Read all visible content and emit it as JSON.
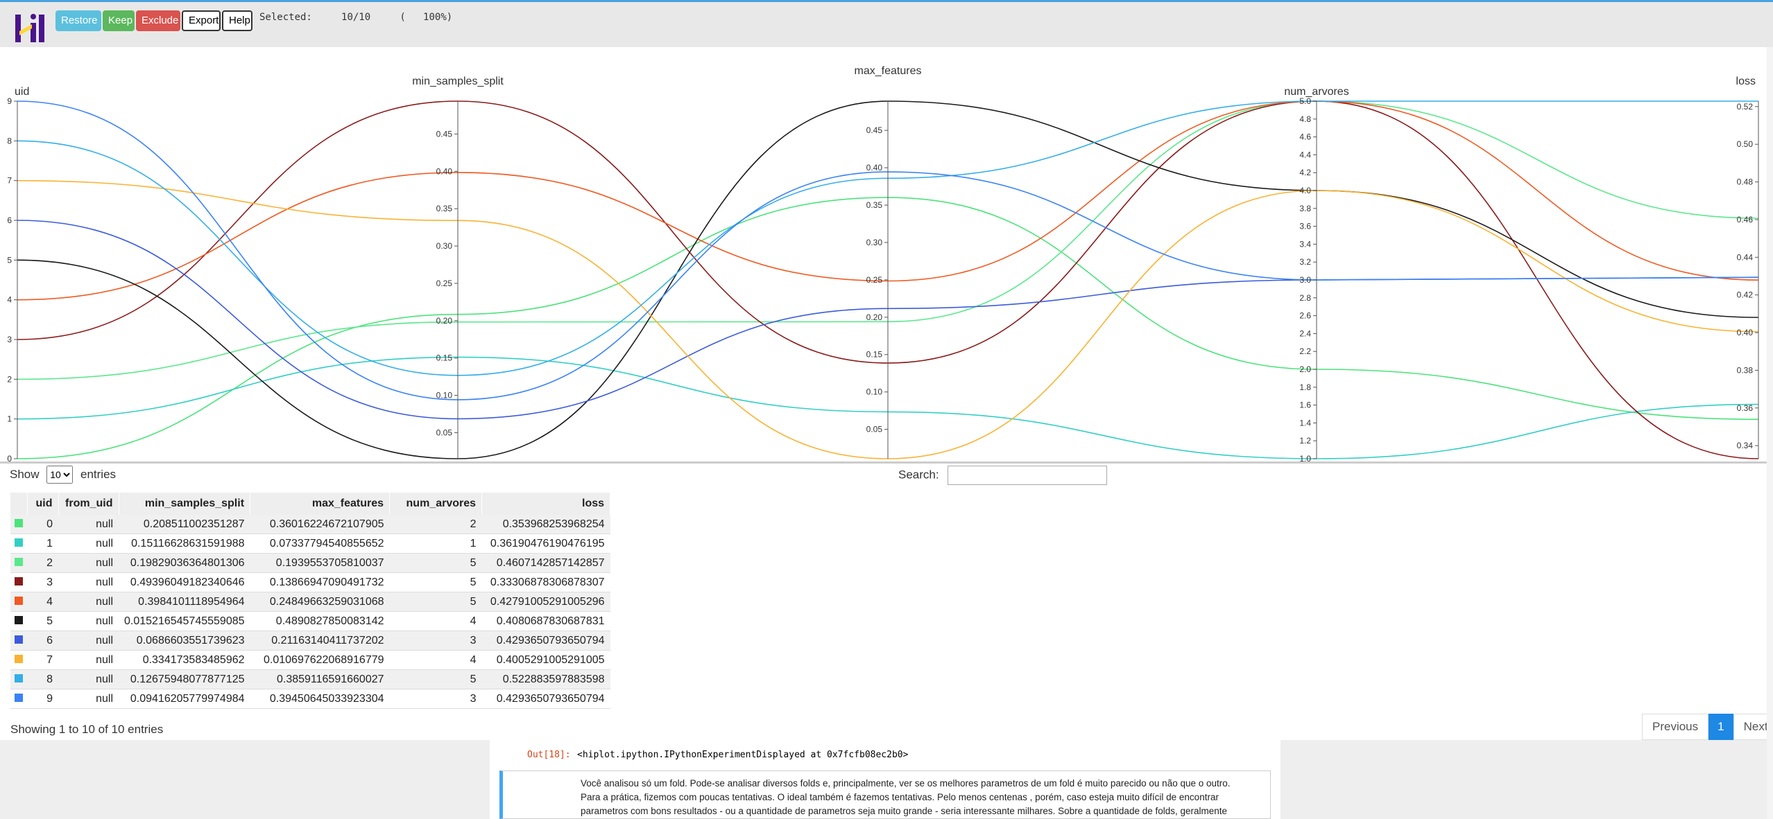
{
  "toolbar": {
    "restore": "Restore",
    "keep": "Keep",
    "exclude": "Exclude",
    "export": "Export",
    "help": "Help",
    "selected_label": "Selected:",
    "selected_count": "10/10",
    "selected_pct": "(   100%)"
  },
  "colors": {
    "restore": "#5bc0de",
    "keep": "#5cb85c",
    "exclude": "#d9534f",
    "logo_purple": "#4a148c",
    "logo_yellow": "#fdd835",
    "pager_active": "#1e88e5"
  },
  "chart_data": {
    "type": "parallel_coordinates",
    "axes": [
      {
        "name": "uid",
        "min": 0,
        "max": 9,
        "ticks": [
          "0",
          "1",
          "2",
          "3",
          "4",
          "5",
          "6",
          "7",
          "8",
          "9"
        ],
        "tick_values": [
          0,
          1,
          2,
          3,
          4,
          5,
          6,
          7,
          8,
          9
        ]
      },
      {
        "name": "min_samples_split",
        "min": 0.015216545745559085,
        "max": 0.4939604918234064,
        "ticks": [
          "0.05",
          "0.10",
          "0.15",
          "0.20",
          "0.25",
          "0.30",
          "0.35",
          "0.40",
          "0.45"
        ],
        "tick_values": [
          0.05,
          0.1,
          0.15,
          0.2,
          0.25,
          0.3,
          0.35,
          0.4,
          0.45
        ]
      },
      {
        "name": "max_features",
        "min": 0.010697622068916779,
        "max": 0.4890827850083142,
        "ticks": [
          "0.05",
          "0.10",
          "0.15",
          "0.20",
          "0.25",
          "0.30",
          "0.35",
          "0.40",
          "0.45"
        ],
        "tick_values": [
          0.05,
          0.1,
          0.15,
          0.2,
          0.25,
          0.3,
          0.35,
          0.4,
          0.45
        ]
      },
      {
        "name": "num_arvores",
        "min": 1.0,
        "max": 5.0,
        "ticks": [
          "1.0",
          "1.2",
          "1.4",
          "1.6",
          "1.8",
          "2.0",
          "2.2",
          "2.4",
          "2.6",
          "2.8",
          "3.0",
          "3.2",
          "3.4",
          "3.6",
          "3.8",
          "4.0",
          "4.2",
          "4.4",
          "4.6",
          "4.8",
          "5.0"
        ],
        "tick_values": [
          1.0,
          1.2,
          1.4,
          1.6,
          1.8,
          2.0,
          2.2,
          2.4,
          2.6,
          2.8,
          3.0,
          3.2,
          3.4,
          3.6,
          3.8,
          4.0,
          4.2,
          4.4,
          4.6,
          4.8,
          5.0
        ]
      },
      {
        "name": "loss",
        "min": 0.33306878306878307,
        "max": 0.522883597883598,
        "ticks": [
          "0.34",
          "0.36",
          "0.38",
          "0.40",
          "0.42",
          "0.44",
          "0.46",
          "0.48",
          "0.50",
          "0.52"
        ],
        "tick_values": [
          0.34,
          0.36,
          0.38,
          0.4,
          0.42,
          0.44,
          0.46,
          0.48,
          0.5,
          0.52
        ]
      }
    ],
    "rows": [
      {
        "uid": 0,
        "values": [
          0,
          0.208511002351287,
          0.36016224672107905,
          2,
          0.353968253968254
        ],
        "color": "#4be37a"
      },
      {
        "uid": 1,
        "values": [
          1,
          0.15116628631591988,
          0.07337794540855652,
          1,
          0.36190476190476195
        ],
        "color": "#33cfc4"
      },
      {
        "uid": 2,
        "values": [
          2,
          0.19829036364801306,
          0.1939553705810037,
          5,
          0.4607142857142857
        ],
        "color": "#5be88c"
      },
      {
        "uid": 3,
        "values": [
          3,
          0.49396049182340646,
          0.13866947090491732,
          5,
          0.33306878306878307
        ],
        "color": "#8b1a1a"
      },
      {
        "uid": 4,
        "values": [
          4,
          0.3984101118954964,
          0.24849663259031068,
          5,
          0.42791005291005296
        ],
        "color": "#f05a22"
      },
      {
        "uid": 5,
        "values": [
          5,
          0.015216545745559085,
          0.4890827850083142,
          4,
          0.4080687830687831
        ],
        "color": "#1a1a1a"
      },
      {
        "uid": 6,
        "values": [
          6,
          0.0686603551739623,
          0.21163140411737202,
          3,
          0.4293650793650794
        ],
        "color": "#3b5bdb"
      },
      {
        "uid": 7,
        "values": [
          7,
          0.334173583485962,
          0.010697622068916779,
          4,
          0.4005291005291005
        ],
        "color": "#f9b233"
      },
      {
        "uid": 8,
        "values": [
          8,
          0.12675948077877125,
          0.3859116591660027,
          5,
          0.522883597883598
        ],
        "color": "#33aee8"
      },
      {
        "uid": 9,
        "values": [
          9,
          0.09416205779974984,
          0.39450645033923304,
          3,
          0.4293650793650794
        ],
        "color": "#3b82f6"
      }
    ]
  },
  "table": {
    "show_label": "Show",
    "entries_label": "entries",
    "page_size": "10",
    "search_label": "Search:",
    "columns": [
      "uid",
      "from_uid",
      "min_samples_split",
      "max_features",
      "num_arvores",
      "loss"
    ],
    "rows": [
      [
        "0",
        "null",
        "0.208511002351287",
        "0.36016224672107905",
        "2",
        "0.353968253968254"
      ],
      [
        "1",
        "null",
        "0.15116628631591988",
        "0.07337794540855652",
        "1",
        "0.36190476190476195"
      ],
      [
        "2",
        "null",
        "0.19829036364801306",
        "0.1939553705810037",
        "5",
        "0.4607142857142857"
      ],
      [
        "3",
        "null",
        "0.49396049182340646",
        "0.13866947090491732",
        "5",
        "0.33306878306878307"
      ],
      [
        "4",
        "null",
        "0.3984101118954964",
        "0.24849663259031068",
        "5",
        "0.42791005291005296"
      ],
      [
        "5",
        "null",
        "0.015216545745559085",
        "0.4890827850083142",
        "4",
        "0.4080687830687831"
      ],
      [
        "6",
        "null",
        "0.0686603551739623",
        "0.21163140411737202",
        "3",
        "0.4293650793650794"
      ],
      [
        "7",
        "null",
        "0.334173583485962",
        "0.010697622068916779",
        "4",
        "0.4005291005291005"
      ],
      [
        "8",
        "null",
        "0.12675948077877125",
        "0.3859116591660027",
        "5",
        "0.522883597883598"
      ],
      [
        "9",
        "null",
        "0.09416205779974984",
        "0.39450645033923304",
        "3",
        "0.4293650793650794"
      ]
    ],
    "showing": "Showing 1 to 10 of 10 entries",
    "pager": {
      "previous": "Previous",
      "current": "1",
      "next": "Next"
    }
  },
  "notebook": {
    "out_prompt": "Out[18]:",
    "out_text": "<hiplot.ipython.IPythonExperimentDisplayed at 0x7fcfb08ec2b0>",
    "md_line1": "Você analisou só um fold. Pode-se analisar diversos folds e, principalmente, ver se os melhores parametros de um fold é muito parecido ou não que o outro.",
    "md_line2": "Para a prática, fizemos com poucas tentativas. O ideal também é fazemos tentativas. Pelo menos centenas , porém, caso esteja muito difícil de encontrar",
    "md_line3": "parametros com bons resultados - ou a quantidade de parametros seja muito grande - seria interessante milhares. Sobre a quantidade de folds, geralmente"
  }
}
